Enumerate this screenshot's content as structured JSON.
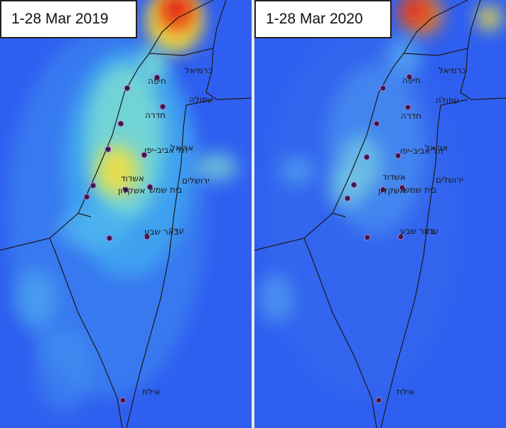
{
  "panels": [
    {
      "title": "1-28 Mar 2019",
      "period": "2019"
    },
    {
      "title": "1-28 Mar 2020",
      "period": "2020"
    }
  ],
  "cities": [
    {
      "key": "karmiel",
      "name": "כרמיאל"
    },
    {
      "key": "haifa",
      "name": "חיפה"
    },
    {
      "key": "afula",
      "name": "עפולה"
    },
    {
      "key": "hadera",
      "name": "חדרה"
    },
    {
      "key": "telaviv",
      "name": "תל אביב-יפו"
    },
    {
      "key": "ariel",
      "name": "אריאל"
    },
    {
      "key": "ashdod",
      "name": "אשדוד"
    },
    {
      "key": "jerusalem",
      "name": "ירושלים"
    },
    {
      "key": "beitshemesh",
      "name": "בית שמש"
    },
    {
      "key": "ashkelon",
      "name": "אשקלון"
    },
    {
      "key": "arad",
      "name": "ערד"
    },
    {
      "key": "beersheva",
      "name": "באר שבע"
    },
    {
      "key": "eilat",
      "name": "אילת"
    }
  ],
  "colors": {
    "background_low": "#2f5ff0",
    "moderate": "#3fa8f0",
    "elevated": "#7fe0d0",
    "high": "#f0e040",
    "very_high": "#f08020",
    "extreme": "#e01010",
    "marker_fill": "#3a1a4a",
    "border_line": "#1a1a1a"
  }
}
